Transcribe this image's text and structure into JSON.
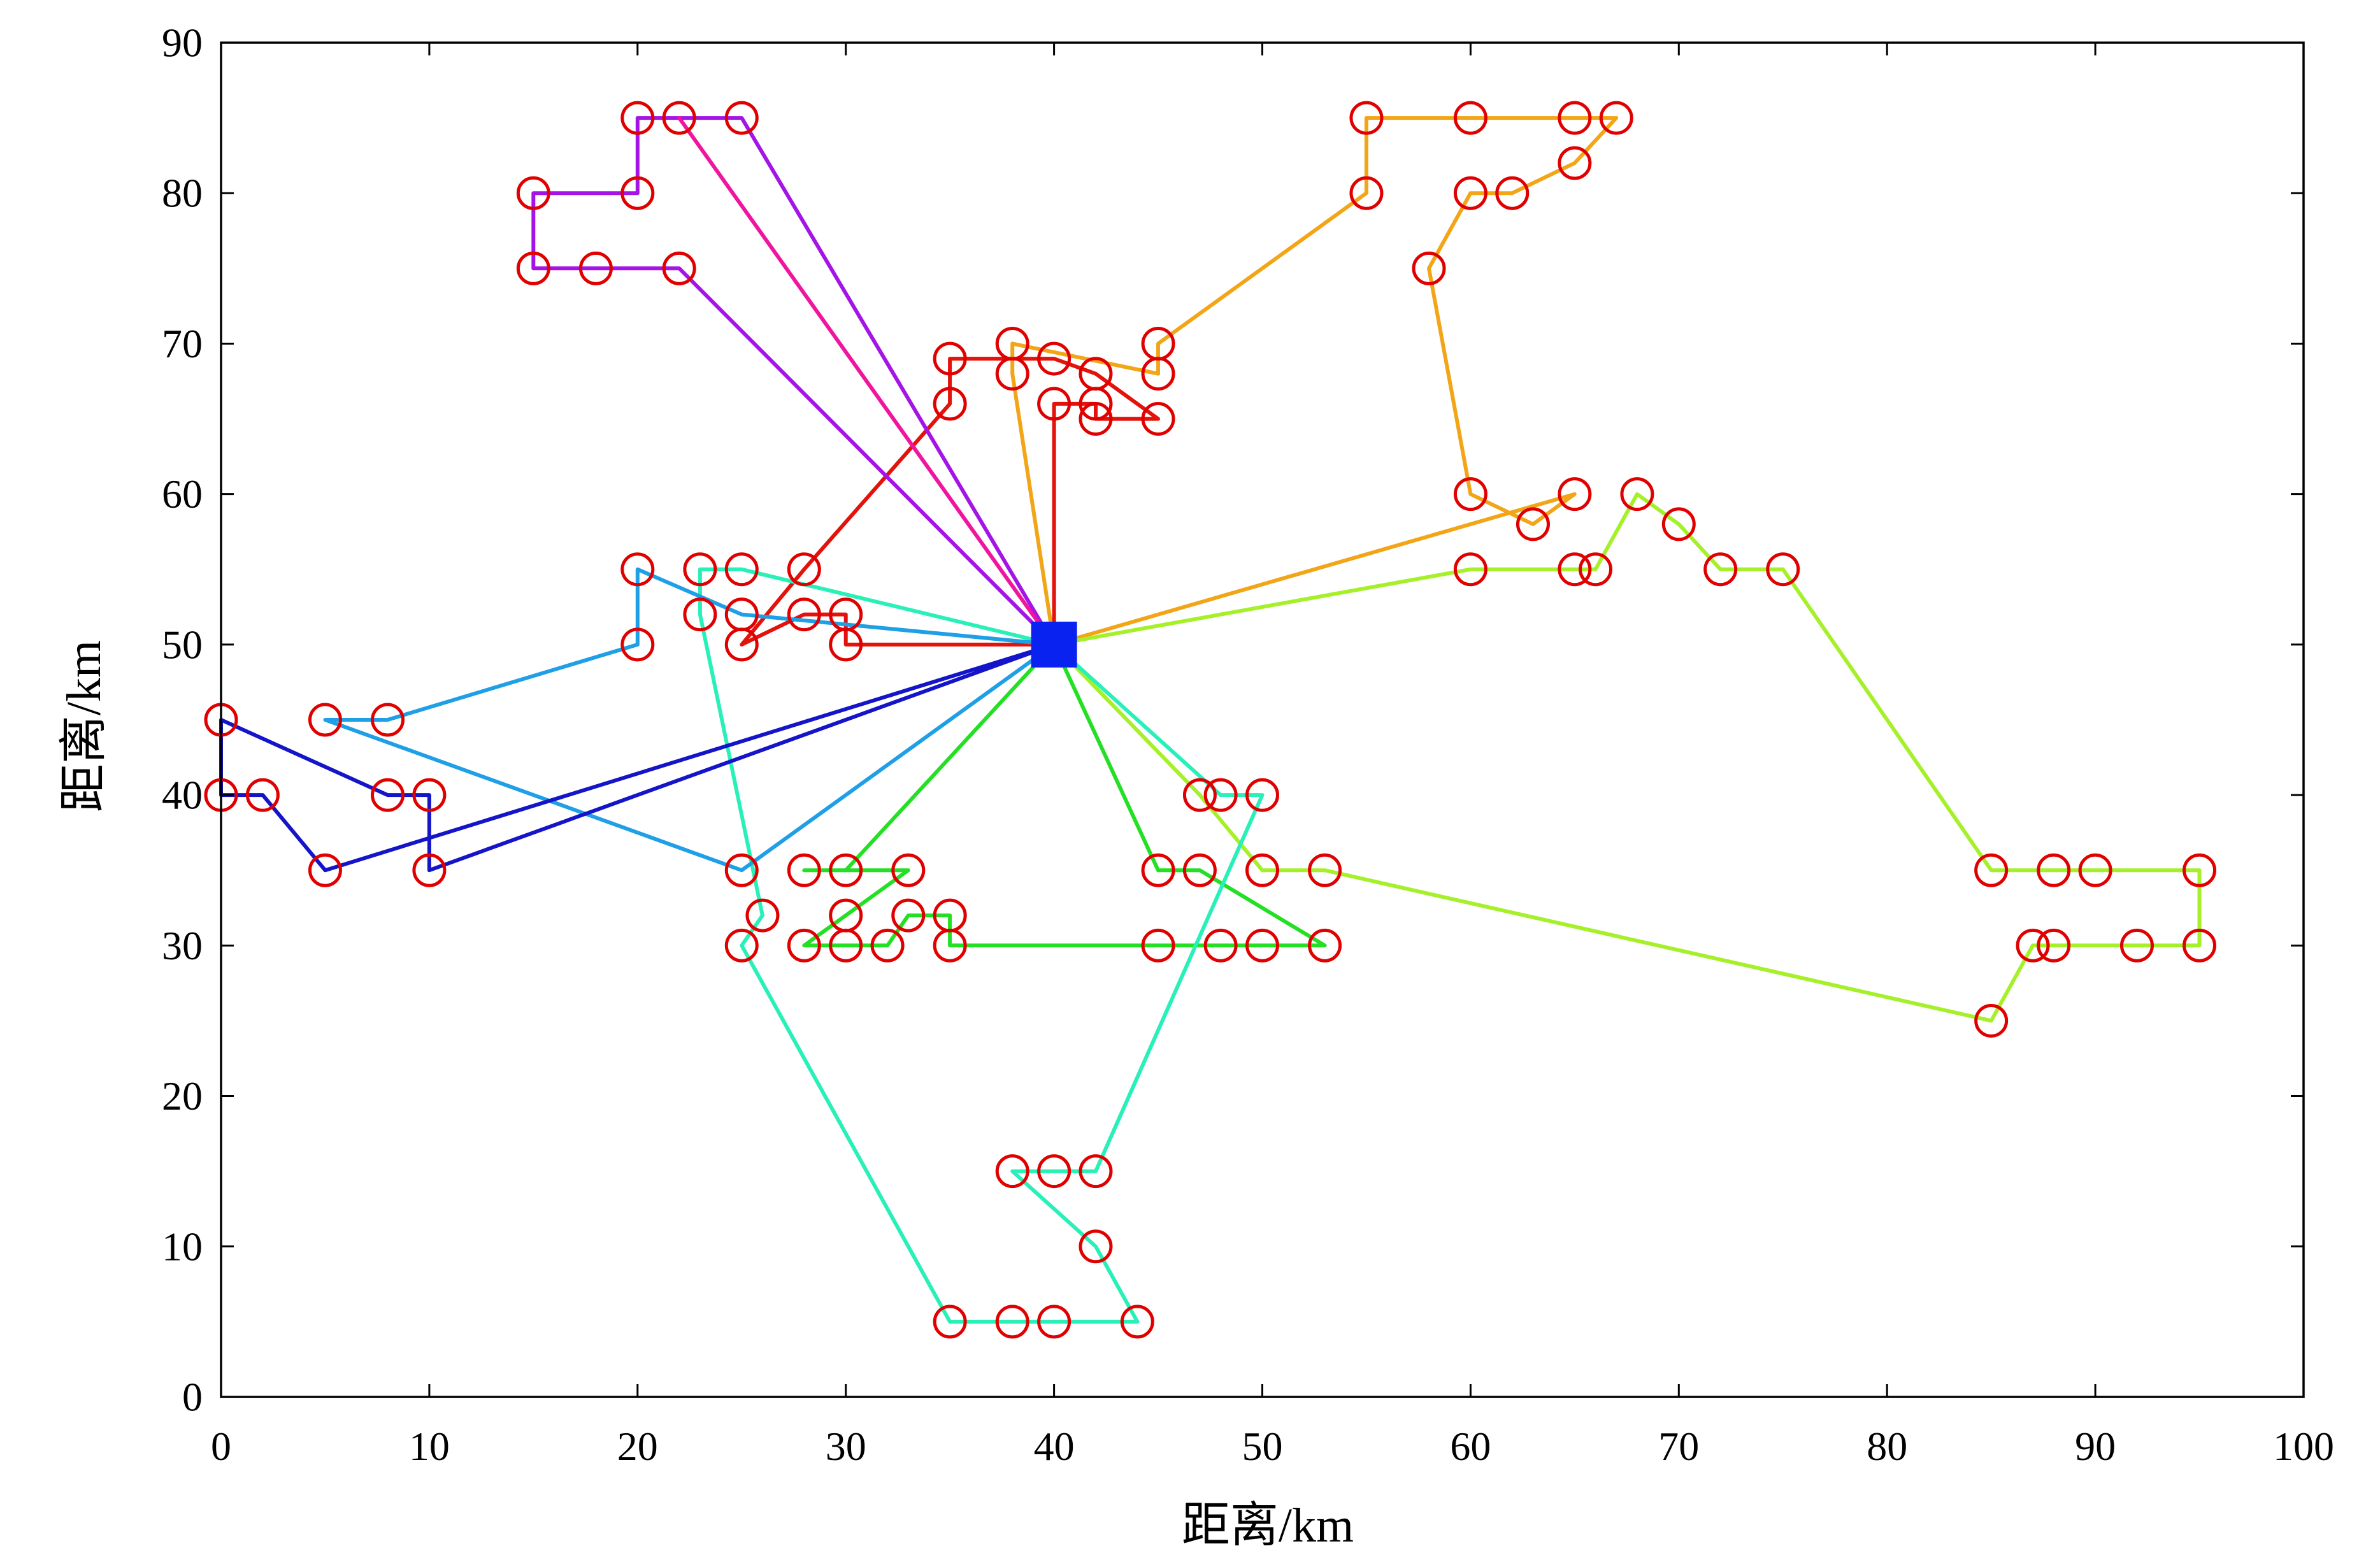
{
  "chart_data": {
    "type": "line",
    "title": "",
    "xlabel": "距离/km",
    "ylabel": "距离/km",
    "xlim": [
      0,
      100
    ],
    "ylim": [
      0,
      90
    ],
    "xticks": [
      0,
      10,
      20,
      30,
      40,
      50,
      60,
      70,
      80,
      90,
      100
    ],
    "yticks": [
      0,
      10,
      20,
      30,
      40,
      50,
      60,
      70,
      80,
      90
    ],
    "grid": false,
    "depot": {
      "x": 40,
      "y": 50,
      "color": "#0a22f0",
      "marker": "square"
    },
    "customer_marker": {
      "color": "#e00000",
      "marker": "circle"
    },
    "routes": [
      {
        "color": "#e3120b",
        "points": [
          [
            30,
            50
          ],
          [
            30,
            52
          ],
          [
            28,
            52
          ],
          [
            25,
            50
          ],
          [
            28,
            55
          ],
          [
            35,
            66
          ],
          [
            35,
            69
          ],
          [
            40,
            69
          ],
          [
            42,
            68
          ],
          [
            45,
            65
          ],
          [
            42,
            65
          ],
          [
            42,
            66
          ],
          [
            40,
            66
          ]
        ]
      },
      {
        "color": "#f2a516",
        "points": [
          [
            38,
            68
          ],
          [
            38,
            70
          ],
          [
            45,
            68
          ],
          [
            45,
            70
          ],
          [
            55,
            80
          ],
          [
            55,
            85
          ],
          [
            60,
            85
          ],
          [
            65,
            85
          ],
          [
            67,
            85
          ],
          [
            65,
            82
          ],
          [
            62,
            80
          ],
          [
            60,
            80
          ],
          [
            58,
            75
          ],
          [
            60,
            60
          ],
          [
            63,
            58
          ],
          [
            65,
            60
          ]
        ]
      },
      {
        "color": "#a6f02a",
        "points": [
          [
            60,
            55
          ],
          [
            65,
            55
          ],
          [
            66,
            55
          ],
          [
            68,
            60
          ],
          [
            70,
            58
          ],
          [
            72,
            55
          ],
          [
            75,
            55
          ],
          [
            85,
            35
          ],
          [
            88,
            35
          ],
          [
            90,
            35
          ],
          [
            95,
            35
          ],
          [
            95,
            30
          ],
          [
            92,
            30
          ],
          [
            88,
            30
          ],
          [
            87,
            30
          ],
          [
            85,
            25
          ],
          [
            53,
            35
          ],
          [
            50,
            35
          ],
          [
            47,
            40
          ]
        ]
      },
      {
        "color": "#24e024",
        "points": [
          [
            45,
            35
          ],
          [
            47,
            35
          ],
          [
            53,
            30
          ],
          [
            50,
            30
          ],
          [
            48,
            30
          ],
          [
            45,
            30
          ],
          [
            35,
            30
          ],
          [
            35,
            32
          ],
          [
            33,
            32
          ],
          [
            32,
            30
          ],
          [
            30,
            30
          ],
          [
            28,
            30
          ],
          [
            30,
            32
          ],
          [
            33,
            35
          ],
          [
            28,
            35
          ],
          [
            30,
            35
          ]
        ]
      },
      {
        "color": "#28f0b8",
        "points": [
          [
            25,
            55
          ],
          [
            23,
            55
          ],
          [
            23,
            52
          ],
          [
            26,
            32
          ],
          [
            25,
            30
          ],
          [
            35,
            5
          ],
          [
            38,
            5
          ],
          [
            40,
            5
          ],
          [
            44,
            5
          ],
          [
            42,
            10
          ],
          [
            38,
            15
          ],
          [
            40,
            15
          ],
          [
            42,
            15
          ],
          [
            50,
            40
          ],
          [
            48,
            40
          ]
        ]
      },
      {
        "color": "#1e9fe6",
        "points": [
          [
            25,
            35
          ],
          [
            5,
            45
          ],
          [
            8,
            45
          ],
          [
            20,
            50
          ],
          [
            20,
            55
          ],
          [
            25,
            52
          ]
        ]
      },
      {
        "color": "#1414c8",
        "points": [
          [
            5,
            35
          ],
          [
            2,
            40
          ],
          [
            0,
            40
          ],
          [
            0,
            45
          ],
          [
            8,
            40
          ],
          [
            10,
            40
          ],
          [
            10,
            35
          ]
        ]
      },
      {
        "color": "#a414e6",
        "points": [
          [
            25,
            85
          ],
          [
            20,
            85
          ],
          [
            20,
            80
          ],
          [
            15,
            80
          ],
          [
            15,
            75
          ],
          [
            18,
            75
          ],
          [
            22,
            75
          ]
        ]
      },
      {
        "color": "#f0149f",
        "points": [
          [
            22,
            85
          ]
        ]
      }
    ]
  }
}
